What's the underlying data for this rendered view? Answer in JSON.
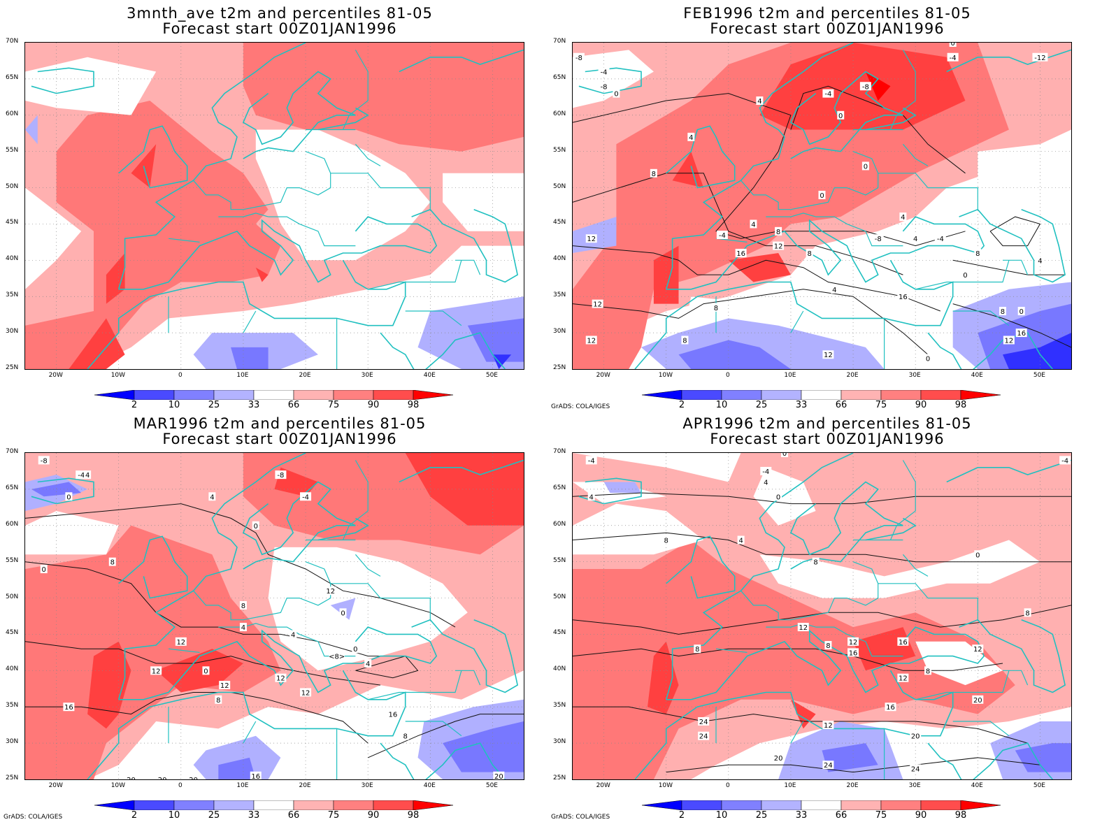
{
  "panels": [
    {
      "id": "p1",
      "title_line1": "3mnth_ave t2m and percentiles 81-05",
      "title_line2": "Forecast start 00Z01JAN1996",
      "credit": ""
    },
    {
      "id": "p2",
      "title_line1": "FEB1996 t2m and percentiles 81-05",
      "title_line2": "Forecast start 00Z01JAN1996",
      "credit": "GrADS: COLA/IGES"
    },
    {
      "id": "p3",
      "title_line1": "MAR1996 t2m and percentiles 81-05",
      "title_line2": "Forecast start 00Z01JAN1996",
      "credit": "GrADS: COLA/IGES"
    },
    {
      "id": "p4",
      "title_line1": "APR1996 t2m and percentiles 81-05",
      "title_line2": "Forecast start 00Z01JAN1996",
      "credit": "GrADS: COLA/IGES"
    }
  ],
  "lat_labels": [
    "70N",
    "65N",
    "60N",
    "55N",
    "50N",
    "45N",
    "40N",
    "35N",
    "30N",
    "25N"
  ],
  "lon_labels": [
    "20W",
    "10W",
    "0",
    "10E",
    "20E",
    "30E",
    "40E",
    "50E"
  ],
  "colorbar": {
    "labels": [
      "2",
      "10",
      "25",
      "33",
      "66",
      "75",
      "90",
      "98"
    ],
    "colors": [
      "#0000ff",
      "#4a4aff",
      "#8080ff",
      "#b3b3ff",
      "#ffffff",
      "#ffb3b3",
      "#ff8080",
      "#ff4d4d",
      "#ff0000"
    ]
  },
  "colors": {
    "coast": "#20c0c0",
    "warm_light": "#ffb0b0",
    "warm_mid": "#ff7878",
    "warm_strong": "#ff4040",
    "warm_extreme": "#ff0000",
    "cold_light": "#b0b0ff",
    "cold_mid": "#7878ff",
    "cold_strong": "#3030ff"
  },
  "contour_labels": {
    "p2": [
      "-8",
      "-4",
      "-8",
      "0",
      "-4",
      "-8",
      "0",
      "-12",
      "4",
      "8",
      "0",
      "4",
      "-4",
      "0",
      "4",
      "8",
      "12",
      "12",
      "8",
      "16",
      "12",
      "8",
      "12",
      "8",
      "4",
      "12",
      "16",
      "0",
      "12",
      "16",
      "-8",
      "-4",
      "0",
      "4",
      "4",
      "-4",
      "0",
      "8",
      "8",
      "0",
      "4"
    ],
    "p3": [
      "-8",
      "-4",
      "0",
      "4",
      "-8",
      "-4",
      "4",
      "0",
      "8",
      "0",
      "12",
      "8",
      "12",
      "12",
      "16",
      "12",
      "0",
      "4",
      "0",
      "4",
      "<8>",
      "0",
      "4",
      "12",
      "8",
      "12",
      "16",
      "8",
      "20",
      "20",
      "20",
      "16",
      "20"
    ],
    "p4": [
      "-4",
      "-4",
      "0",
      "4",
      "-4",
      "0",
      "4",
      "8",
      "4",
      "8",
      "0",
      "8",
      "12",
      "8",
      "12",
      "8",
      "12",
      "8",
      "16",
      "16",
      "12",
      "16",
      "20",
      "12",
      "24",
      "24",
      "20",
      "20",
      "24",
      "24",
      "24"
    ]
  }
}
